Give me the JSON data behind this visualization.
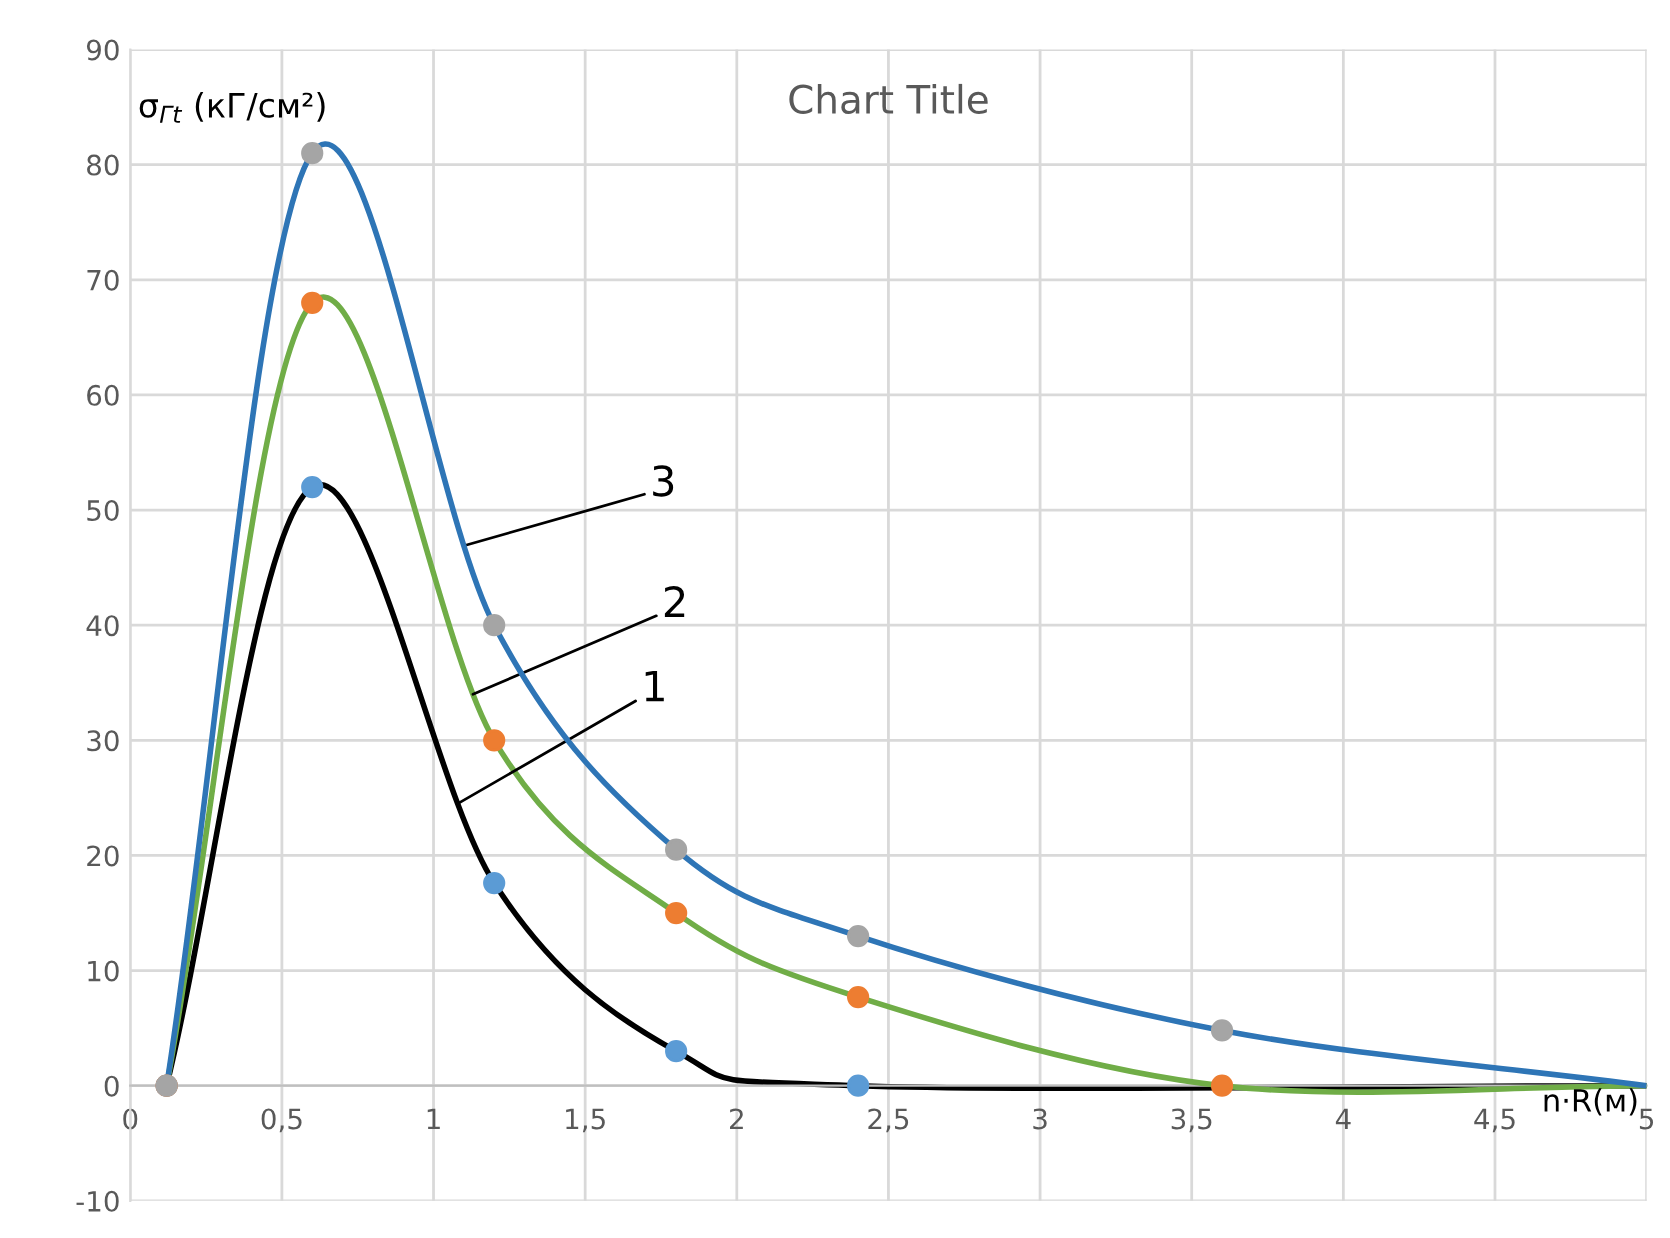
{
  "chart_data": {
    "type": "line",
    "title": "Chart Title",
    "xlabel": "n·R(м)",
    "ylabel": "σ$_{Гt}$ (кГ/см²)",
    "xlim": [
      0,
      5
    ],
    "ylim": [
      -10,
      90
    ],
    "xticks": [
      0,
      {
        "value": 0.5,
        "label": "0,5"
      },
      1,
      {
        "value": 1.5,
        "label": "1,5"
      },
      2,
      {
        "value": 2.5,
        "label": "2,5"
      },
      3,
      {
        "value": 3.5,
        "label": "3,5"
      },
      4,
      {
        "value": 4.5,
        "label": "4,5"
      },
      5
    ],
    "yticks": [
      -10,
      0,
      10,
      20,
      30,
      40,
      50,
      60,
      70,
      80,
      90
    ],
    "grid": true,
    "marker": "circle",
    "line_style": "solid",
    "series": [
      {
        "color": "#000000",
        "x": [
          0.12,
          0.6,
          1.2,
          1.8,
          2.4,
          5
        ],
        "values": [
          0,
          52,
          17.6,
          3,
          0,
          0
        ],
        "colors": [
          "#5b9bd5",
          "#5b9bd5",
          "#5b9bd5",
          "#5b9bd5",
          "#5b9bd5",
          null
        ]
      },
      {
        "color": "#70ad47",
        "x": [
          0.12,
          0.6,
          1.2,
          1.8,
          2.4,
          3.6,
          5
        ],
        "values": [
          0,
          68,
          30,
          15,
          7.7,
          0,
          0
        ],
        "colors": [
          "#ed7d31",
          "#ed7d31",
          "#ed7d31",
          "#ed7d31",
          "#ed7d31",
          "#ed7d31",
          null
        ]
      },
      {
        "color": "#2e75b6",
        "x": [
          0.12,
          0.6,
          1.2,
          1.8,
          2.4,
          3.6,
          5
        ],
        "values": [
          0,
          81,
          40,
          20.5,
          13,
          4.8,
          0
        ],
        "colors": [
          "#a5a5a5",
          "#a5a5a5",
          "#a5a5a5",
          "#a5a5a5",
          "#a5a5a5",
          "#a5a5a5",
          null
        ]
      }
    ],
    "annotations": [
      {
        "text": "3",
        "x": 1.1,
        "y": 46.9
      },
      {
        "text": "2",
        "x": 1.13,
        "y": 34
      },
      {
        "text": "1",
        "x": 1.08,
        "y": 24.5
      }
    ]
  }
}
